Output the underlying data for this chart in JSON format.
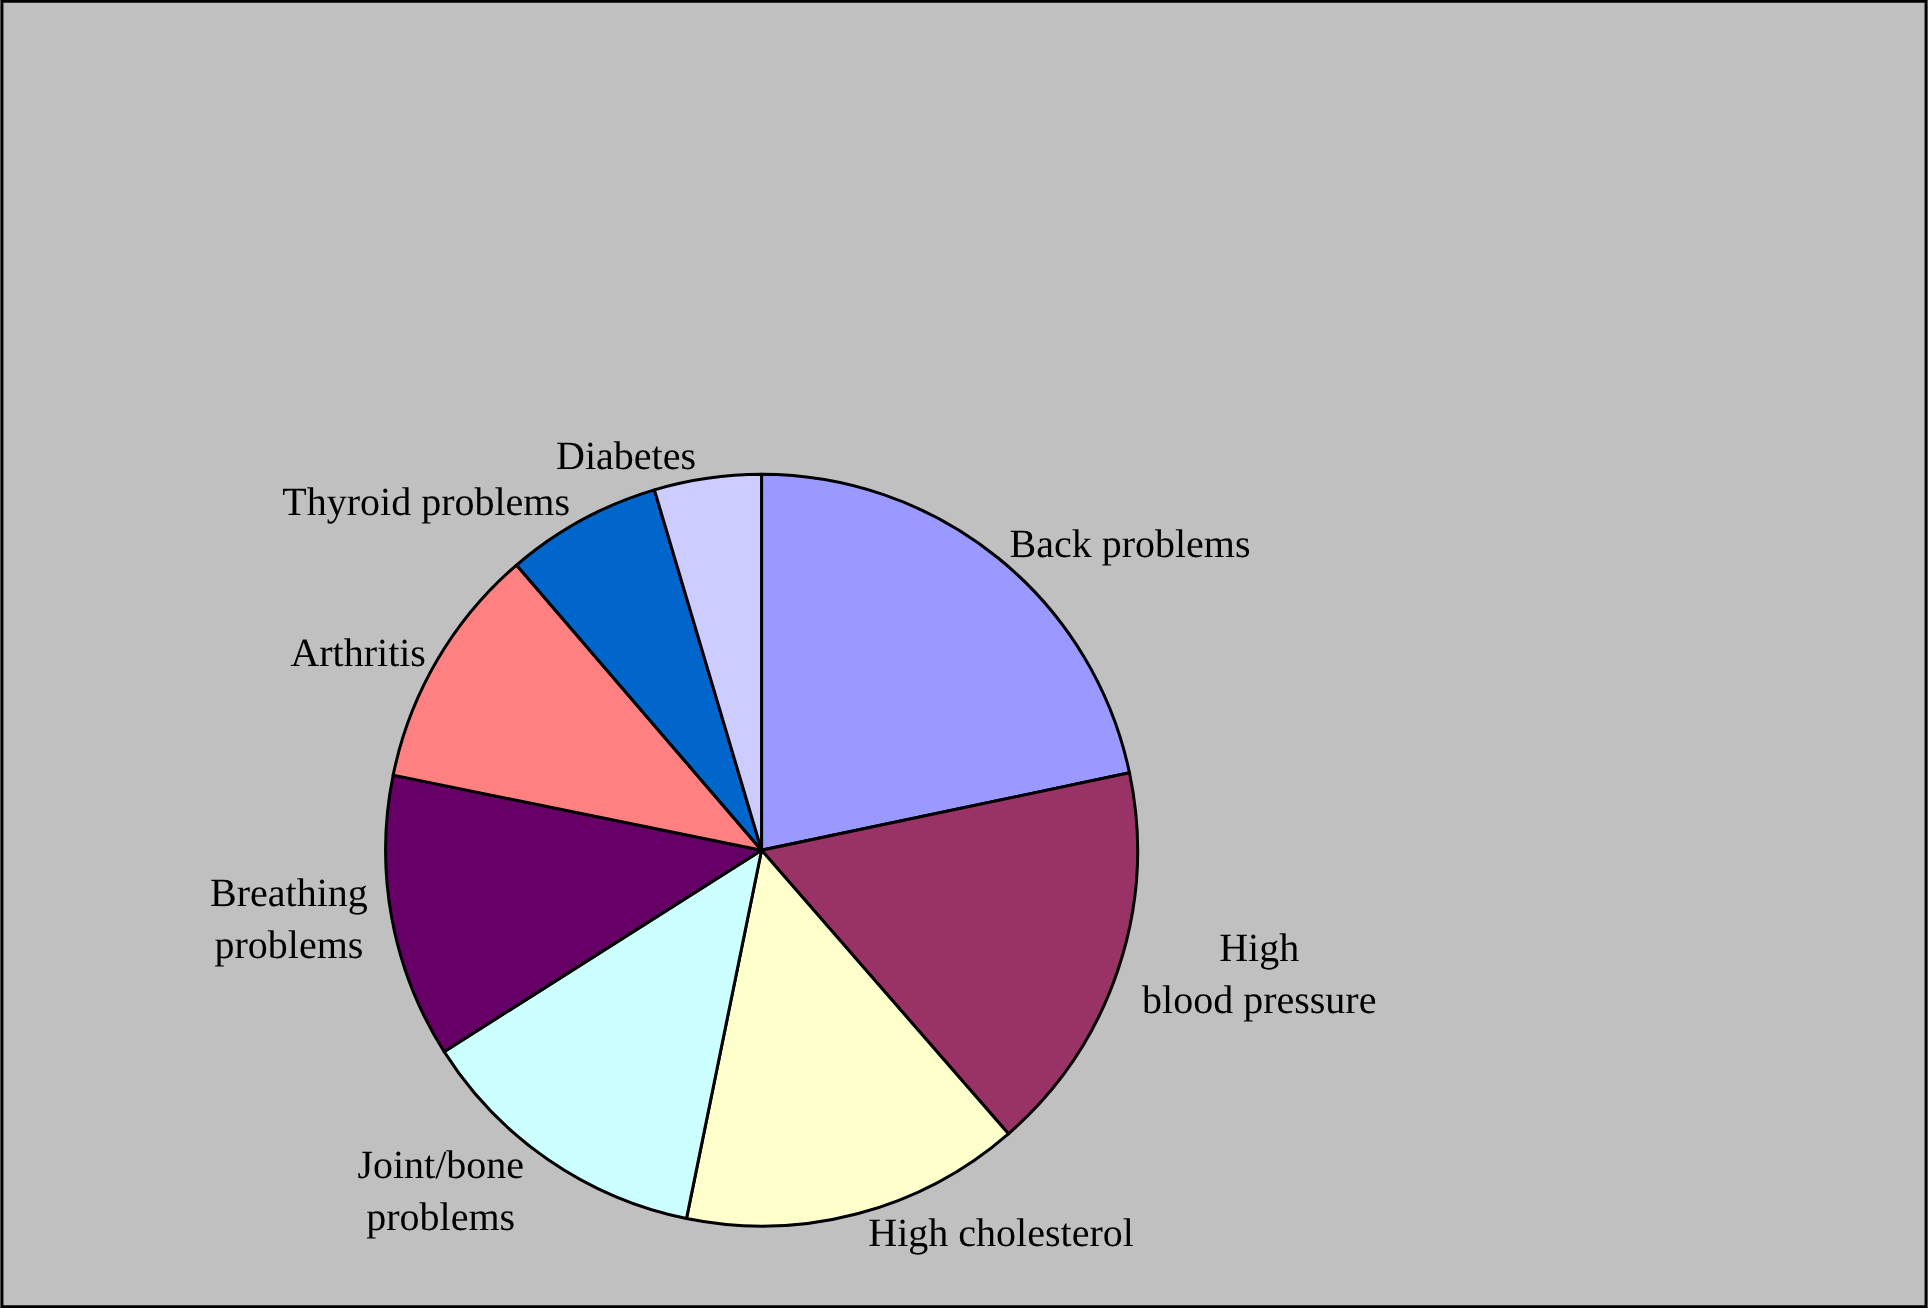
{
  "chart_data": {
    "type": "pie",
    "categories": [
      "Back problems",
      "High blood pressure",
      "High cholesterol",
      "Joint/bone problems",
      "Breathing problems",
      "Arthritis",
      "Thyroid problems",
      "Diabetes"
    ],
    "values": [
      21.7,
      16.9,
      14.6,
      12.8,
      12.2,
      10.5,
      6.7,
      4.6
    ],
    "colors": [
      "#9999ff",
      "#993366",
      "#ffffcc",
      "#ccffff",
      "#660066",
      "#ff8080",
      "#0066cc",
      "#ccccff"
    ],
    "legend": false
  }
}
